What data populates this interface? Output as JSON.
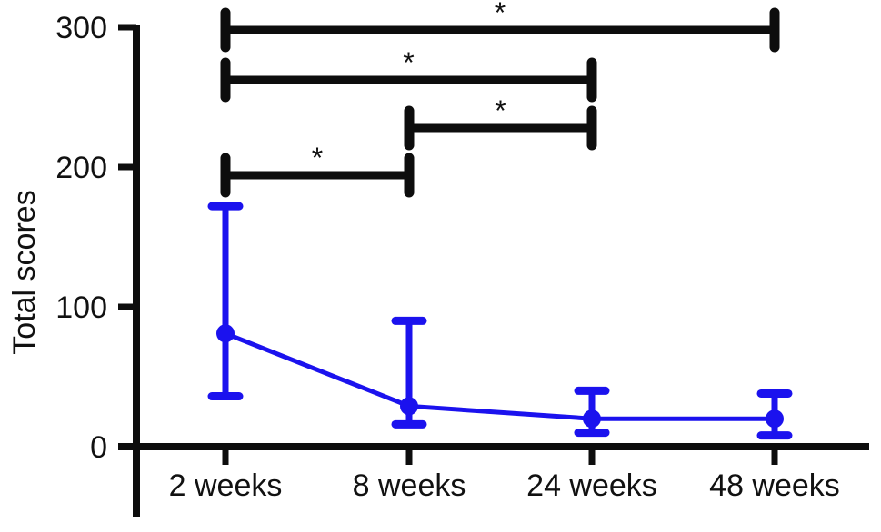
{
  "colors": {
    "series": "#1b12ee",
    "axis": "#0d0d0d",
    "text": "#111111",
    "background": "#ffffff"
  },
  "chart_data": {
    "type": "line",
    "title": "",
    "xlabel": "",
    "ylabel": "Total scores",
    "categories": [
      "2 weeks",
      "8 weeks",
      "24 weeks",
      "48 weeks"
    ],
    "yticks": [
      0,
      100,
      200,
      300
    ],
    "ylim": [
      0,
      300
    ],
    "grid": false,
    "legend": null,
    "series": [
      {
        "name": "Total scores",
        "marker": "circle",
        "color": "#1b12ee",
        "points": [
          {
            "category": "2 weeks",
            "mean": 81,
            "err_low": 36,
            "err_high": 172
          },
          {
            "category": "8 weeks",
            "mean": 29,
            "err_low": 16,
            "err_high": 90
          },
          {
            "category": "24 weeks",
            "mean": 20,
            "err_low": 10,
            "err_high": 40
          },
          {
            "category": "48 weeks",
            "mean": 20,
            "err_low": 8,
            "err_high": 38
          }
        ]
      }
    ],
    "annotations": [
      {
        "type": "significance-bracket",
        "from": "2 weeks",
        "to": "48 weeks",
        "label": "*"
      },
      {
        "type": "significance-bracket",
        "from": "2 weeks",
        "to": "24 weeks",
        "label": "*"
      },
      {
        "type": "significance-bracket",
        "from": "8 weeks",
        "to": "24 weeks",
        "label": "*"
      },
      {
        "type": "significance-bracket",
        "from": "2 weeks",
        "to": "8 weeks",
        "label": "*"
      }
    ]
  }
}
